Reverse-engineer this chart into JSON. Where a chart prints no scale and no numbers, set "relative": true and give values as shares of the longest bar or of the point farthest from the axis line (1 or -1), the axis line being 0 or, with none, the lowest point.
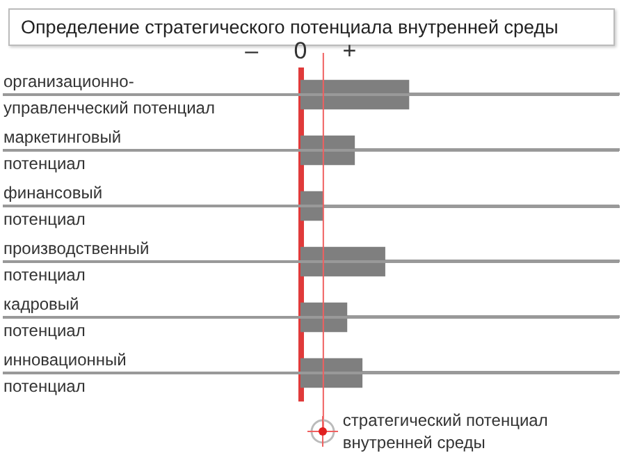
{
  "chart_data": {
    "type": "bar",
    "orientation": "horizontal",
    "relative": true,
    "title": "Определение стратегического потенциала внутренней среды",
    "categories": [
      "организационно-управленческий потенциал",
      "маркетинговый потенциал",
      "финансовый потенциал",
      "производственный потенциал",
      "кадровый потенциал",
      "инновационный потенциал"
    ],
    "values": [
      1,
      0.5,
      0.21,
      0.78,
      0.43,
      0.57
    ],
    "color": "#7f7f7f",
    "annotations": [
      "–",
      "0",
      "+"
    ],
    "ref_lines": [
      {
        "axis": "x",
        "value": 0.21,
        "label": "стратегический потенциал внутренней среды",
        "color": "#f06060"
      }
    ],
    "grid": "y"
  }
}
